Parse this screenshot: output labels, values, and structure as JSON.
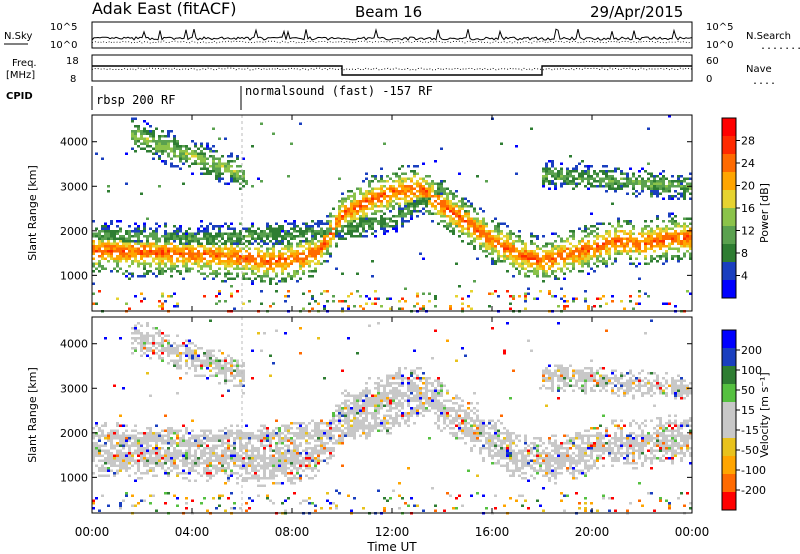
{
  "header": {
    "station": "Adak East (fitACF)",
    "beam": "Beam 16",
    "date": "29/Apr/2015"
  },
  "top_panel": {
    "left_label": "N.Sky",
    "left_ticks": [
      "10^5",
      "10^0"
    ],
    "right_ticks": [
      "10^5",
      "10^0"
    ],
    "right_label": "N.Search",
    "right_dots": "........"
  },
  "freq_panel": {
    "left_label_1": "Freq.",
    "left_label_2": "[MHz]",
    "left_ticks": [
      "18",
      "8"
    ],
    "right_ticks": [
      "60",
      "0"
    ],
    "right_label": "Nave",
    "right_dots": "...."
  },
  "cpid_panel": {
    "label": "CPID",
    "mode_1": "rbsp 200 RF",
    "mode_2": "normalsound (fast) -157 RF"
  },
  "colors": {
    "power_scale": [
      "#0000ff",
      "#1a3fbf",
      "#2e7d32",
      "#5aa14f",
      "#8bc34a",
      "#e6d330",
      "#ffa500",
      "#ff6a00",
      "#ff2a00",
      "#ff0000"
    ],
    "velocity_scale": [
      "#ff0000",
      "#ff6a00",
      "#ffa500",
      "#e8c21c",
      "#c8c8c8",
      "#c8c8c8",
      "#55c040",
      "#2e7d32",
      "#1a3fbf",
      "#0000ff"
    ]
  },
  "chart_data": [
    {
      "type": "heatmap",
      "name": "power",
      "ylabel": "Slant Range [km]",
      "yticks": [
        "4000",
        "3000",
        "2000",
        "1000"
      ],
      "ytick_values": [
        4000,
        3000,
        2000,
        1000
      ],
      "ylim": [
        200,
        4600
      ],
      "xlim_hours": [
        0,
        24
      ],
      "colorbar_label": "Power [dB]",
      "colorbar_ticks": [
        "28",
        "24",
        "20",
        "16",
        "12",
        "8",
        "4"
      ],
      "colorbar_range": [
        0,
        32
      ],
      "bands": [
        {
          "t": [
            0,
            2,
            4,
            6,
            7,
            8,
            9,
            10,
            11,
            12,
            13,
            14,
            15,
            16,
            17,
            18,
            19,
            20,
            21,
            22,
            23,
            24
          ],
          "r": [
            1600,
            1550,
            1500,
            1420,
            1350,
            1380,
            1550,
            2400,
            2700,
            2900,
            3000,
            2600,
            2200,
            1800,
            1500,
            1350,
            1500,
            1650,
            1800,
            1750,
            1850,
            1900
          ],
          "w": 350,
          "p": 26
        },
        {
          "t": [
            0,
            2,
            4,
            6,
            8,
            10,
            12,
            13,
            14
          ],
          "r": [
            1950,
            1900,
            1850,
            1900,
            1950,
            2050,
            2300,
            2600,
            3000
          ],
          "w": 200,
          "p": 10
        },
        {
          "t": [
            1.5,
            3,
            4.5,
            6
          ],
          "r": [
            4200,
            3900,
            3600,
            3300
          ],
          "w": 250,
          "p": 14
        },
        {
          "t": [
            18,
            20,
            22,
            24
          ],
          "r": [
            3300,
            3200,
            3100,
            3000
          ],
          "w": 200,
          "p": 12
        }
      ]
    },
    {
      "type": "heatmap",
      "name": "velocity",
      "ylabel": "Slant Range [km]",
      "yticks": [
        "4000",
        "3000",
        "2000",
        "1000"
      ],
      "ytick_values": [
        4000,
        3000,
        2000,
        1000
      ],
      "ylim": [
        200,
        4600
      ],
      "xlim_hours": [
        0,
        24
      ],
      "colorbar_label": "Velocity [m s⁻¹]",
      "colorbar_ticks": [
        "200",
        "100",
        "50",
        "15",
        "-15",
        "-50",
        "-100",
        "-200"
      ],
      "xticks": [
        "00:00",
        "04:00",
        "08:00",
        "12:00",
        "16:00",
        "20:00",
        "00:00"
      ],
      "xtick_hours": [
        0,
        4,
        8,
        12,
        16,
        20,
        24
      ],
      "xlabel": "Time UT"
    }
  ]
}
